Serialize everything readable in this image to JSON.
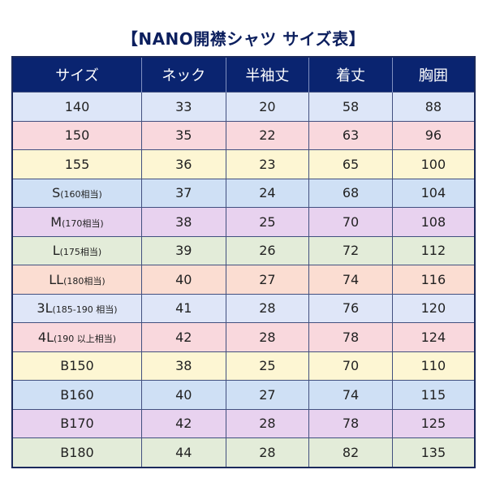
{
  "title": "【NANO開襟シャツ サイズ表】",
  "header_color": "#0a2470",
  "columns": [
    "サイズ",
    "ネック",
    "半袖丈",
    "着丈",
    "胸囲"
  ],
  "rows": [
    {
      "size": "140",
      "size_note": "",
      "neck": "33",
      "sleeve": "20",
      "length": "58",
      "chest": "88",
      "color": "#dde6f8"
    },
    {
      "size": "150",
      "size_note": "",
      "neck": "35",
      "sleeve": "22",
      "length": "63",
      "chest": "96",
      "color": "#f9d8dd"
    },
    {
      "size": "155",
      "size_note": "",
      "neck": "36",
      "sleeve": "23",
      "length": "65",
      "chest": "100",
      "color": "#fdf6d3"
    },
    {
      "size": "S",
      "size_note": "(160相当)",
      "neck": "37",
      "sleeve": "24",
      "length": "68",
      "chest": "104",
      "color": "#cfe0f5"
    },
    {
      "size": "M",
      "size_note": "(170相当)",
      "neck": "38",
      "sleeve": "25",
      "length": "70",
      "chest": "108",
      "color": "#e8d2ef"
    },
    {
      "size": "L",
      "size_note": "(175相当)",
      "neck": "39",
      "sleeve": "26",
      "length": "72",
      "chest": "112",
      "color": "#e3ecd9"
    },
    {
      "size": "LL",
      "size_note": "(180相当)",
      "neck": "40",
      "sleeve": "27",
      "length": "74",
      "chest": "116",
      "color": "#fbddd2"
    },
    {
      "size": "3L",
      "size_note": "(185-190 相当)",
      "neck": "41",
      "sleeve": "28",
      "length": "76",
      "chest": "120",
      "color": "#dfe6f8"
    },
    {
      "size": "4L",
      "size_note": "(190 以上相当)",
      "neck": "42",
      "sleeve": "28",
      "length": "78",
      "chest": "124",
      "color": "#f9d8dd"
    },
    {
      "size": "B150",
      "size_note": "",
      "neck": "38",
      "sleeve": "25",
      "length": "70",
      "chest": "110",
      "color": "#fdf6d3"
    },
    {
      "size": "B160",
      "size_note": "",
      "neck": "40",
      "sleeve": "27",
      "length": "74",
      "chest": "115",
      "color": "#cfe0f5"
    },
    {
      "size": "B170",
      "size_note": "",
      "neck": "42",
      "sleeve": "28",
      "length": "78",
      "chest": "125",
      "color": "#e8d2ef"
    },
    {
      "size": "B180",
      "size_note": "",
      "neck": "44",
      "sleeve": "28",
      "length": "82",
      "chest": "135",
      "color": "#e3ecd9"
    }
  ]
}
